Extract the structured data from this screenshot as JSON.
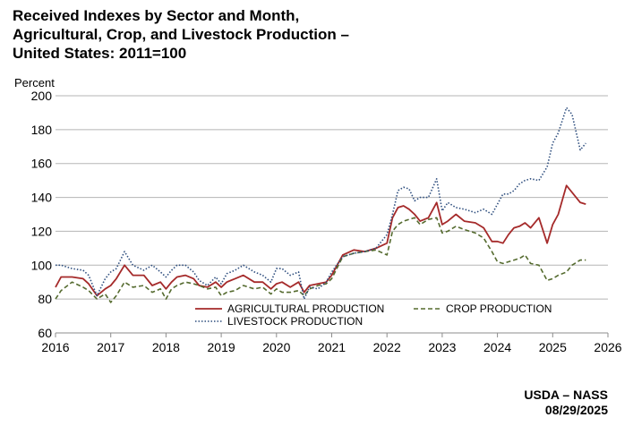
{
  "chart_data": {
    "type": "line",
    "title": [
      "Received Indexes by Sector and Month,",
      "Agricultural, Crop, and Livestock Production –",
      "United States: 2011=100"
    ],
    "ylabel": "Percent",
    "xlabel": "",
    "xlim": [
      2016,
      2026
    ],
    "ylim": [
      60,
      200
    ],
    "x_ticks": [
      "2016",
      "2017",
      "2018",
      "2019",
      "2020",
      "2021",
      "2022",
      "2023",
      "2024",
      "2025",
      "2026"
    ],
    "y_ticks": [
      "60",
      "80",
      "100",
      "120",
      "140",
      "160",
      "180",
      "200"
    ],
    "grid": true,
    "legend_position": "bottom-center",
    "series": [
      {
        "name": "AGRICULTURAL PRODUCTION",
        "color": "#a52a2a",
        "style": "solid",
        "x": [
          2016.0,
          2016.1,
          2016.3,
          2016.5,
          2016.6,
          2016.75,
          2016.9,
          2017.0,
          2017.1,
          2017.25,
          2017.4,
          2017.6,
          2017.75,
          2017.9,
          2018.0,
          2018.1,
          2018.2,
          2018.35,
          2018.5,
          2018.6,
          2018.75,
          2018.9,
          2019.0,
          2019.1,
          2019.25,
          2019.4,
          2019.6,
          2019.75,
          2019.9,
          2020.0,
          2020.1,
          2020.25,
          2020.4,
          2020.5,
          2020.6,
          2020.75,
          2020.9,
          2021.0,
          2021.2,
          2021.4,
          2021.6,
          2021.8,
          2022.0,
          2022.1,
          2022.2,
          2022.3,
          2022.4,
          2022.5,
          2022.6,
          2022.75,
          2022.9,
          2023.0,
          2023.1,
          2023.25,
          2023.4,
          2023.6,
          2023.75,
          2023.9,
          2024.0,
          2024.1,
          2024.2,
          2024.3,
          2024.4,
          2024.5,
          2024.6,
          2024.75,
          2024.9,
          2025.0,
          2025.1,
          2025.25,
          2025.35,
          2025.5,
          2025.6
        ],
        "y": [
          87,
          93,
          93,
          92,
          89,
          82,
          86,
          88,
          92,
          100,
          94,
          94,
          88,
          90,
          86,
          90,
          93,
          94,
          92,
          88,
          87,
          90,
          87,
          90,
          92,
          94,
          90,
          90,
          86,
          89,
          90,
          87,
          90,
          84,
          88,
          89,
          90,
          94,
          106,
          109,
          108,
          110,
          113,
          128,
          134,
          135,
          133,
          130,
          126,
          128,
          137,
          124,
          126,
          130,
          126,
          125,
          122,
          114,
          114,
          113,
          118,
          122,
          123,
          125,
          122,
          128,
          113,
          124,
          130,
          147,
          143,
          137,
          136
        ]
      },
      {
        "name": "CROP PRODUCTION",
        "color": "#556b2f",
        "style": "dashed",
        "x": [
          2016.0,
          2016.1,
          2016.3,
          2016.5,
          2016.6,
          2016.75,
          2016.9,
          2017.0,
          2017.1,
          2017.25,
          2017.4,
          2017.6,
          2017.75,
          2017.9,
          2018.0,
          2018.1,
          2018.2,
          2018.35,
          2018.5,
          2018.6,
          2018.75,
          2018.9,
          2019.0,
          2019.1,
          2019.25,
          2019.4,
          2019.6,
          2019.75,
          2019.9,
          2020.0,
          2020.1,
          2020.25,
          2020.4,
          2020.5,
          2020.6,
          2020.75,
          2020.9,
          2021.0,
          2021.2,
          2021.4,
          2021.6,
          2021.8,
          2022.0,
          2022.1,
          2022.2,
          2022.3,
          2022.4,
          2022.5,
          2022.6,
          2022.75,
          2022.9,
          2023.0,
          2023.1,
          2023.25,
          2023.4,
          2023.6,
          2023.75,
          2023.9,
          2024.0,
          2024.1,
          2024.2,
          2024.3,
          2024.4,
          2024.5,
          2024.6,
          2024.75,
          2024.9,
          2025.0,
          2025.1,
          2025.25,
          2025.35,
          2025.5,
          2025.6
        ],
        "y": [
          80,
          85,
          90,
          87,
          85,
          80,
          83,
          78,
          82,
          90,
          87,
          88,
          84,
          86,
          80,
          86,
          88,
          90,
          89,
          88,
          86,
          87,
          82,
          84,
          85,
          88,
          86,
          87,
          83,
          86,
          84,
          84,
          85,
          82,
          86,
          88,
          89,
          92,
          105,
          107,
          108,
          109,
          106,
          120,
          124,
          126,
          127,
          128,
          124,
          127,
          128,
          119,
          120,
          123,
          121,
          119,
          116,
          108,
          102,
          101,
          102,
          103,
          104,
          106,
          101,
          100,
          91,
          92,
          94,
          96,
          100,
          103,
          103
        ]
      },
      {
        "name": "LIVESTOCK PRODUCTION",
        "color": "#2f4f7f",
        "style": "dotted",
        "x": [
          2016.0,
          2016.1,
          2016.3,
          2016.5,
          2016.6,
          2016.75,
          2016.9,
          2017.0,
          2017.1,
          2017.25,
          2017.4,
          2017.6,
          2017.75,
          2017.9,
          2018.0,
          2018.1,
          2018.2,
          2018.35,
          2018.5,
          2018.6,
          2018.75,
          2018.9,
          2019.0,
          2019.1,
          2019.25,
          2019.4,
          2019.6,
          2019.75,
          2019.9,
          2020.0,
          2020.1,
          2020.25,
          2020.4,
          2020.5,
          2020.6,
          2020.75,
          2020.9,
          2021.0,
          2021.2,
          2021.4,
          2021.6,
          2021.8,
          2022.0,
          2022.1,
          2022.2,
          2022.3,
          2022.4,
          2022.5,
          2022.6,
          2022.75,
          2022.9,
          2023.0,
          2023.1,
          2023.25,
          2023.4,
          2023.6,
          2023.75,
          2023.9,
          2024.0,
          2024.1,
          2024.2,
          2024.3,
          2024.4,
          2024.5,
          2024.6,
          2024.75,
          2024.9,
          2025.0,
          2025.1,
          2025.25,
          2025.35,
          2025.5,
          2025.6
        ],
        "y": [
          100,
          100,
          98,
          97,
          94,
          82,
          92,
          96,
          98,
          108,
          100,
          97,
          100,
          96,
          93,
          97,
          100,
          100,
          96,
          91,
          88,
          93,
          89,
          95,
          97,
          100,
          96,
          94,
          90,
          98,
          98,
          94,
          96,
          80,
          87,
          86,
          90,
          96,
          105,
          107,
          108,
          110,
          118,
          130,
          144,
          146,
          145,
          138,
          140,
          140,
          151,
          132,
          137,
          134,
          133,
          131,
          133,
          130,
          136,
          142,
          142,
          144,
          148,
          150,
          151,
          150,
          158,
          172,
          178,
          193,
          189,
          168,
          172
        ]
      }
    ],
    "source": [
      "USDA – NASS",
      "08/29/2025"
    ]
  }
}
